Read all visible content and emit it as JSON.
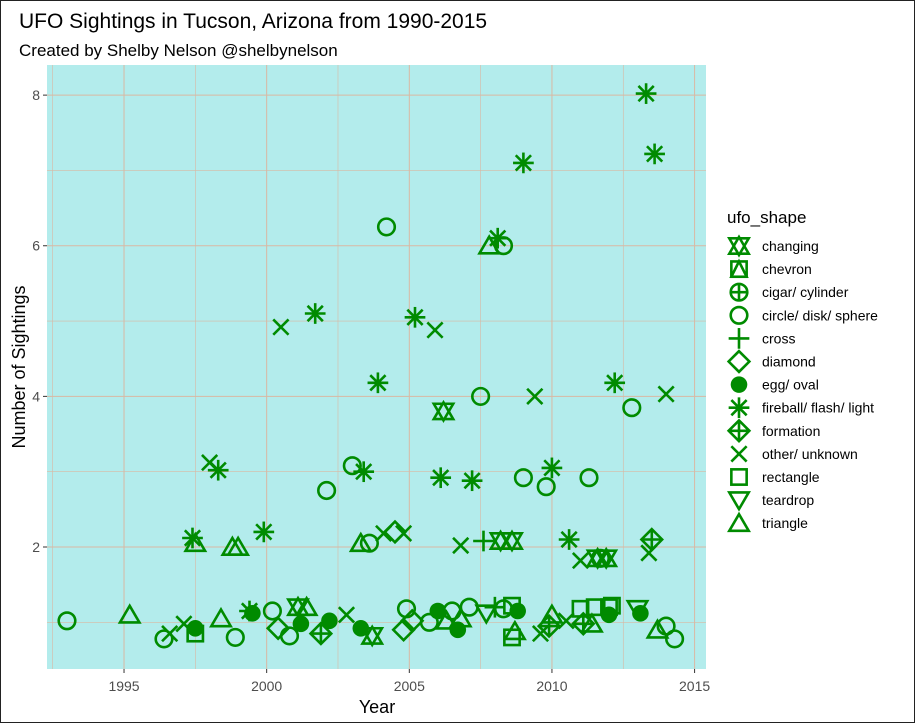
{
  "chart_data": {
    "type": "scatter",
    "title": "UFO Sightings in Tucson, Arizona from 1990-2015",
    "subtitle": "Created by Shelby Nelson @shelbynelson",
    "xlabel": "Year",
    "ylabel": "Number of Sightings",
    "xlim": [
      1992.3,
      2015.4
    ],
    "ylim": [
      0.38,
      8.4
    ],
    "x_ticks": [
      1995,
      2000,
      2005,
      2010,
      2015
    ],
    "y_ticks": [
      2,
      4,
      6,
      8
    ],
    "grid": true,
    "panel_color": "#b3ecec",
    "grid_color": "#d9b8a3",
    "point_color": "#008b00",
    "legend": {
      "title": "ufo_shape",
      "placement": "right",
      "entries": [
        {
          "label": "changing",
          "shape": "changing"
        },
        {
          "label": "chevron",
          "shape": "chevron"
        },
        {
          "label": "cigar/ cylinder",
          "shape": "cigar"
        },
        {
          "label": "circle/ disk/ sphere",
          "shape": "circle"
        },
        {
          "label": "cross",
          "shape": "cross"
        },
        {
          "label": "diamond",
          "shape": "diamond"
        },
        {
          "label": "egg/ oval",
          "shape": "egg"
        },
        {
          "label": "fireball/ flash/ light",
          "shape": "fireball"
        },
        {
          "label": "formation",
          "shape": "formation"
        },
        {
          "label": "other/ unknown",
          "shape": "other"
        },
        {
          "label": "rectangle",
          "shape": "rectangle"
        },
        {
          "label": "teardrop",
          "shape": "teardrop"
        },
        {
          "label": "triangle",
          "shape": "triangle"
        }
      ]
    },
    "points": [
      {
        "x": 1993.0,
        "y": 1.02,
        "shape": "circle"
      },
      {
        "x": 1995.2,
        "y": 1.1,
        "shape": "triangle"
      },
      {
        "x": 1996.4,
        "y": 0.78,
        "shape": "circle"
      },
      {
        "x": 1996.6,
        "y": 0.85,
        "shape": "other"
      },
      {
        "x": 1997.1,
        "y": 0.98,
        "shape": "other"
      },
      {
        "x": 1997.5,
        "y": 0.85,
        "shape": "rectangle"
      },
      {
        "x": 1997.5,
        "y": 0.92,
        "shape": "egg"
      },
      {
        "x": 1997.4,
        "y": 2.12,
        "shape": "fireball"
      },
      {
        "x": 1997.5,
        "y": 2.05,
        "shape": "triangle"
      },
      {
        "x": 1998.0,
        "y": 3.12,
        "shape": "other"
      },
      {
        "x": 1998.3,
        "y": 3.02,
        "shape": "fireball"
      },
      {
        "x": 1998.4,
        "y": 1.05,
        "shape": "triangle"
      },
      {
        "x": 1998.8,
        "y": 2.0,
        "shape": "triangle"
      },
      {
        "x": 1999.0,
        "y": 2.0,
        "shape": "triangle"
      },
      {
        "x": 1998.9,
        "y": 0.8,
        "shape": "circle"
      },
      {
        "x": 1999.4,
        "y": 1.15,
        "shape": "fireball"
      },
      {
        "x": 1999.5,
        "y": 1.12,
        "shape": "egg"
      },
      {
        "x": 1999.9,
        "y": 2.2,
        "shape": "fireball"
      },
      {
        "x": 2000.2,
        "y": 1.15,
        "shape": "circle"
      },
      {
        "x": 2000.4,
        "y": 0.92,
        "shape": "diamond"
      },
      {
        "x": 2000.5,
        "y": 4.92,
        "shape": "other"
      },
      {
        "x": 2000.8,
        "y": 0.82,
        "shape": "circle"
      },
      {
        "x": 2001.1,
        "y": 1.2,
        "shape": "changing"
      },
      {
        "x": 2001.2,
        "y": 0.98,
        "shape": "egg"
      },
      {
        "x": 2001.4,
        "y": 1.2,
        "shape": "triangle"
      },
      {
        "x": 2001.7,
        "y": 5.1,
        "shape": "fireball"
      },
      {
        "x": 2001.9,
        "y": 0.85,
        "shape": "formation"
      },
      {
        "x": 2002.1,
        "y": 2.75,
        "shape": "circle"
      },
      {
        "x": 2002.2,
        "y": 1.02,
        "shape": "egg"
      },
      {
        "x": 2002.8,
        "y": 1.1,
        "shape": "other"
      },
      {
        "x": 2003.0,
        "y": 3.08,
        "shape": "circle"
      },
      {
        "x": 2003.3,
        "y": 2.05,
        "shape": "triangle"
      },
      {
        "x": 2003.4,
        "y": 3.0,
        "shape": "fireball"
      },
      {
        "x": 2003.3,
        "y": 0.92,
        "shape": "egg"
      },
      {
        "x": 2003.6,
        "y": 2.05,
        "shape": "circle"
      },
      {
        "x": 2003.7,
        "y": 0.82,
        "shape": "changing"
      },
      {
        "x": 2003.9,
        "y": 4.18,
        "shape": "fireball"
      },
      {
        "x": 2004.1,
        "y": 2.18,
        "shape": "other"
      },
      {
        "x": 2004.2,
        "y": 6.25,
        "shape": "circle"
      },
      {
        "x": 2004.5,
        "y": 2.2,
        "shape": "diamond"
      },
      {
        "x": 2004.8,
        "y": 2.18,
        "shape": "other"
      },
      {
        "x": 2004.8,
        "y": 0.9,
        "shape": "diamond"
      },
      {
        "x": 2004.9,
        "y": 1.18,
        "shape": "circle"
      },
      {
        "x": 2005.1,
        "y": 1.02,
        "shape": "diamond"
      },
      {
        "x": 2005.2,
        "y": 5.05,
        "shape": "fireball"
      },
      {
        "x": 2005.7,
        "y": 1.0,
        "shape": "circle"
      },
      {
        "x": 2005.9,
        "y": 4.88,
        "shape": "other"
      },
      {
        "x": 2006.0,
        "y": 1.15,
        "shape": "egg"
      },
      {
        "x": 2006.1,
        "y": 2.92,
        "shape": "fireball"
      },
      {
        "x": 2006.2,
        "y": 3.8,
        "shape": "changing"
      },
      {
        "x": 2006.3,
        "y": 1.02,
        "shape": "triangle"
      },
      {
        "x": 2006.5,
        "y": 1.15,
        "shape": "circle"
      },
      {
        "x": 2006.7,
        "y": 0.9,
        "shape": "egg"
      },
      {
        "x": 2006.8,
        "y": 1.05,
        "shape": "triangle"
      },
      {
        "x": 2006.8,
        "y": 2.02,
        "shape": "other"
      },
      {
        "x": 2007.1,
        "y": 1.2,
        "shape": "circle"
      },
      {
        "x": 2007.2,
        "y": 2.88,
        "shape": "fireball"
      },
      {
        "x": 2007.5,
        "y": 4.0,
        "shape": "circle"
      },
      {
        "x": 2007.6,
        "y": 2.08,
        "shape": "cross"
      },
      {
        "x": 2007.7,
        "y": 1.12,
        "shape": "teardrop"
      },
      {
        "x": 2007.8,
        "y": 6.0,
        "shape": "triangle"
      },
      {
        "x": 2008.0,
        "y": 1.2,
        "shape": "cross"
      },
      {
        "x": 2008.1,
        "y": 6.1,
        "shape": "fireball"
      },
      {
        "x": 2008.2,
        "y": 2.08,
        "shape": "changing"
      },
      {
        "x": 2008.3,
        "y": 6.0,
        "shape": "circle"
      },
      {
        "x": 2008.3,
        "y": 1.18,
        "shape": "circle"
      },
      {
        "x": 2008.6,
        "y": 2.08,
        "shape": "changing"
      },
      {
        "x": 2008.6,
        "y": 1.22,
        "shape": "rectangle"
      },
      {
        "x": 2008.6,
        "y": 0.8,
        "shape": "rectangle"
      },
      {
        "x": 2008.7,
        "y": 0.88,
        "shape": "triangle"
      },
      {
        "x": 2008.8,
        "y": 1.15,
        "shape": "egg"
      },
      {
        "x": 2009.0,
        "y": 7.1,
        "shape": "fireball"
      },
      {
        "x": 2009.0,
        "y": 2.92,
        "shape": "circle"
      },
      {
        "x": 2009.4,
        "y": 4.0,
        "shape": "other"
      },
      {
        "x": 2009.6,
        "y": 0.85,
        "shape": "other"
      },
      {
        "x": 2009.8,
        "y": 2.8,
        "shape": "circle"
      },
      {
        "x": 2009.9,
        "y": 0.95,
        "shape": "formation"
      },
      {
        "x": 2010.0,
        "y": 1.1,
        "shape": "triangle"
      },
      {
        "x": 2010.0,
        "y": 3.05,
        "shape": "fireball"
      },
      {
        "x": 2010.5,
        "y": 1.02,
        "shape": "other"
      },
      {
        "x": 2010.6,
        "y": 2.1,
        "shape": "fireball"
      },
      {
        "x": 2011.0,
        "y": 1.18,
        "shape": "rectangle"
      },
      {
        "x": 2011.0,
        "y": 1.82,
        "shape": "other"
      },
      {
        "x": 2011.1,
        "y": 0.98,
        "shape": "formation"
      },
      {
        "x": 2011.3,
        "y": 2.92,
        "shape": "circle"
      },
      {
        "x": 2011.4,
        "y": 0.98,
        "shape": "triangle"
      },
      {
        "x": 2011.5,
        "y": 1.2,
        "shape": "rectangle"
      },
      {
        "x": 2011.6,
        "y": 1.85,
        "shape": "changing"
      },
      {
        "x": 2011.7,
        "y": 1.85,
        "shape": "circle"
      },
      {
        "x": 2011.9,
        "y": 1.85,
        "shape": "changing"
      },
      {
        "x": 2012.0,
        "y": 1.2,
        "shape": "rectangle"
      },
      {
        "x": 2012.0,
        "y": 1.1,
        "shape": "egg"
      },
      {
        "x": 2012.1,
        "y": 1.22,
        "shape": "rectangle"
      },
      {
        "x": 2012.2,
        "y": 4.18,
        "shape": "fireball"
      },
      {
        "x": 2012.8,
        "y": 3.85,
        "shape": "circle"
      },
      {
        "x": 2013.0,
        "y": 1.18,
        "shape": "teardrop"
      },
      {
        "x": 2013.1,
        "y": 1.12,
        "shape": "egg"
      },
      {
        "x": 2013.3,
        "y": 8.02,
        "shape": "fireball"
      },
      {
        "x": 2013.4,
        "y": 1.92,
        "shape": "other"
      },
      {
        "x": 2013.5,
        "y": 2.1,
        "shape": "formation"
      },
      {
        "x": 2013.6,
        "y": 7.22,
        "shape": "fireball"
      },
      {
        "x": 2013.7,
        "y": 0.9,
        "shape": "triangle"
      },
      {
        "x": 2014.0,
        "y": 4.03,
        "shape": "other"
      },
      {
        "x": 2014.0,
        "y": 0.95,
        "shape": "circle"
      },
      {
        "x": 2014.3,
        "y": 0.78,
        "shape": "circle"
      }
    ]
  }
}
